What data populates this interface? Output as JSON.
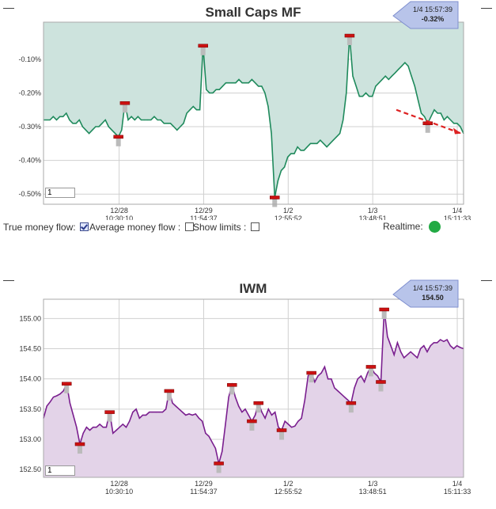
{
  "controls": {
    "true_money_flow_label": "True money flow:",
    "true_money_flow_checked": true,
    "average_money_flow_label": "Average money flow :",
    "average_money_flow_checked": false,
    "show_limits_label": "Show limits :",
    "show_limits_checked": false,
    "realtime_label": "Realtime:",
    "realtime_status_color": "#22aa44"
  },
  "minimize_symbol": "—",
  "chart_data": [
    {
      "type": "area",
      "title": "Small Caps MF",
      "line_color": "#1f8a5c",
      "fill_color": "#cde3dd",
      "ylim": [
        -0.53,
        0.01
      ],
      "y_ticks": [
        -0.1,
        -0.2,
        -0.3,
        -0.4,
        -0.5
      ],
      "y_tick_labels": [
        "-0.10%",
        "-0.20%",
        "-0.30%",
        "-0.40%",
        "-0.50%"
      ],
      "x_ticks": [
        {
          "date": "12/28",
          "time": "10:30:10"
        },
        {
          "date": "12/29",
          "time": "11:54:37"
        },
        {
          "date": "1/2",
          "time": "12:55:52"
        },
        {
          "date": "1/3",
          "time": "13:48:51"
        },
        {
          "date": "1/4",
          "time": "15:11:33"
        }
      ],
      "period_input_value": "1",
      "callout": {
        "datetime": "1/4 15:57:39",
        "value": "-0.32%"
      },
      "trend_arrow_color": "#dd2222",
      "series": [
        {
          "values": [
            -0.28,
            -0.28,
            -0.28,
            -0.27,
            -0.28,
            -0.27,
            -0.27,
            -0.26,
            -0.28,
            -0.29,
            -0.29,
            -0.28,
            -0.3,
            -0.31,
            -0.32,
            -0.31,
            -0.3,
            -0.3,
            -0.29,
            -0.28,
            -0.3,
            -0.31,
            -0.32,
            -0.33,
            -0.31,
            -0.23,
            -0.28,
            -0.27,
            -0.28,
            -0.27,
            -0.28,
            -0.28,
            -0.28,
            -0.28,
            -0.27,
            -0.28,
            -0.28,
            -0.29,
            -0.29,
            -0.29,
            -0.3,
            -0.31,
            -0.3,
            -0.29,
            -0.26,
            -0.25,
            -0.24,
            -0.25,
            -0.25,
            -0.06,
            -0.19,
            -0.2,
            -0.2,
            -0.19,
            -0.19,
            -0.18,
            -0.17,
            -0.17,
            -0.17,
            -0.17,
            -0.16,
            -0.17,
            -0.17,
            -0.17,
            -0.16,
            -0.17,
            -0.18,
            -0.18,
            -0.2,
            -0.24,
            -0.32,
            -0.51,
            -0.46,
            -0.43,
            -0.42,
            -0.39,
            -0.38,
            -0.38,
            -0.36,
            -0.37,
            -0.37,
            -0.36,
            -0.35,
            -0.35,
            -0.35,
            -0.34,
            -0.35,
            -0.36,
            -0.35,
            -0.34,
            -0.33,
            -0.32,
            -0.28,
            -0.2,
            -0.03,
            -0.15,
            -0.18,
            -0.21,
            -0.21,
            -0.2,
            -0.21,
            -0.21,
            -0.18,
            -0.17,
            -0.16,
            -0.15,
            -0.16,
            -0.15,
            -0.14,
            -0.13,
            -0.12,
            -0.11,
            -0.12,
            -0.15,
            -0.18,
            -0.22,
            -0.26,
            -0.27,
            -0.29,
            -0.27,
            -0.25,
            -0.26,
            -0.26,
            -0.28,
            -0.27,
            -0.28,
            -0.29,
            -0.29,
            -0.3,
            -0.32
          ]
        }
      ]
    },
    {
      "type": "area",
      "title": "IWM",
      "line_color": "#7a1f8f",
      "fill_color": "#e3d3e8",
      "ylim": [
        152.37,
        155.32
      ],
      "y_ticks": [
        152.5,
        153.0,
        153.5,
        154.0,
        154.5,
        155.0
      ],
      "y_tick_labels": [
        "152.50",
        "153.00",
        "153.50",
        "154.00",
        "154.50",
        "155.00"
      ],
      "x_ticks": [
        {
          "date": "12/28",
          "time": "10:30:10"
        },
        {
          "date": "12/29",
          "time": "11:54:37"
        },
        {
          "date": "1/2",
          "time": "12:55:52"
        },
        {
          "date": "1/3",
          "time": "13:48:51"
        },
        {
          "date": "1/4",
          "time": "15:11:33"
        }
      ],
      "period_input_value": "1",
      "callout": {
        "datetime": "1/4 15:57:39",
        "value": "154.50"
      },
      "series": [
        {
          "values": [
            153.35,
            153.55,
            153.62,
            153.7,
            153.72,
            153.75,
            153.8,
            153.92,
            153.6,
            153.4,
            153.2,
            152.92,
            153.1,
            153.2,
            153.15,
            153.2,
            153.2,
            153.25,
            153.2,
            153.2,
            153.45,
            153.1,
            153.15,
            153.2,
            153.25,
            153.2,
            153.3,
            153.45,
            153.5,
            153.35,
            153.4,
            153.4,
            153.45,
            153.45,
            153.45,
            153.45,
            153.45,
            153.5,
            153.8,
            153.6,
            153.55,
            153.5,
            153.45,
            153.4,
            153.42,
            153.4,
            153.42,
            153.35,
            153.3,
            153.1,
            153.05,
            152.95,
            152.85,
            152.6,
            152.8,
            153.25,
            153.7,
            153.9,
            153.7,
            153.55,
            153.45,
            153.5,
            153.4,
            153.3,
            153.4,
            153.6,
            153.45,
            153.35,
            153.5,
            153.4,
            153.45,
            153.2,
            153.15,
            153.3,
            153.25,
            153.2,
            153.22,
            153.3,
            153.35,
            153.65,
            154.05,
            154.1,
            153.95,
            154.05,
            154.1,
            154.2,
            154.0,
            154.0,
            153.85,
            153.8,
            153.75,
            153.7,
            153.65,
            153.6,
            153.85,
            154.0,
            154.05,
            153.95,
            154.1,
            154.2,
            154.1,
            154.05,
            153.95,
            155.15,
            154.7,
            154.55,
            154.4,
            154.6,
            154.45,
            154.35,
            154.4,
            154.45,
            154.4,
            154.35,
            154.5,
            154.55,
            154.45,
            154.55,
            154.6,
            154.6,
            154.65,
            154.62,
            154.65,
            154.55,
            154.5,
            154.55,
            154.52,
            154.5
          ]
        }
      ]
    }
  ]
}
